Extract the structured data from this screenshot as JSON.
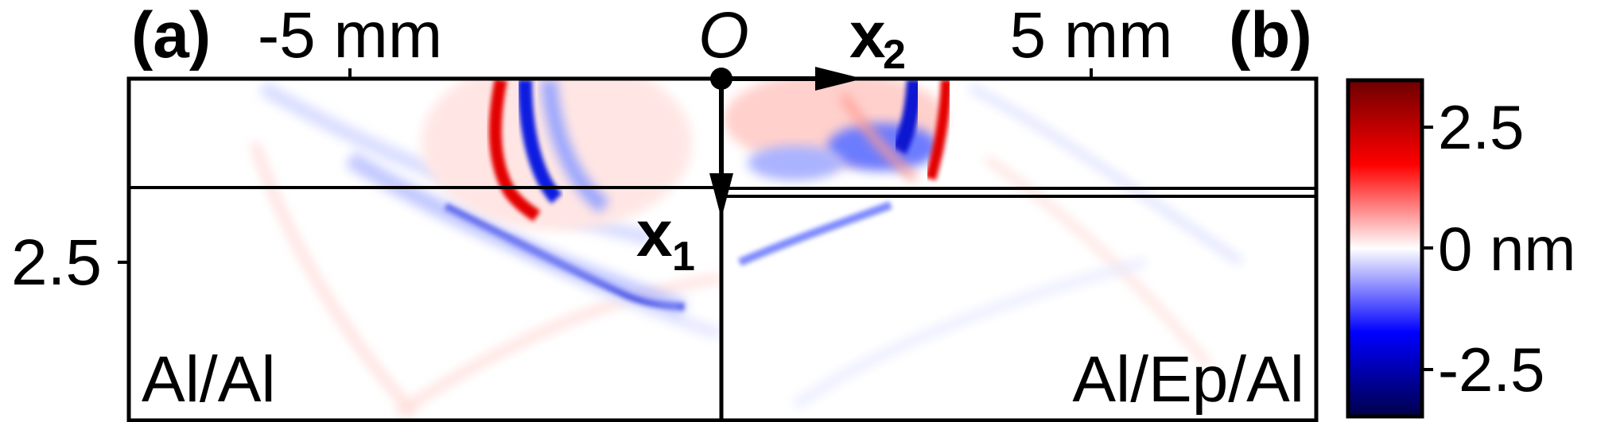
{
  "figure": {
    "panel_a_label": "(a)",
    "panel_b_label": "(b)",
    "origin_label": "O",
    "axis_x2_label": "x",
    "axis_x2_sub": "2",
    "axis_x1_label": "x",
    "axis_x1_sub": "1",
    "tick_top_left": "-5 mm",
    "tick_top_right": "5 mm",
    "tick_left": "2.5",
    "material_left": "Al/Al",
    "material_right": "Al/Ep/Al"
  },
  "colorbar": {
    "tick_max": "2.5",
    "tick_mid": "0 nm",
    "tick_min": "-2.5",
    "colors": {
      "max": "#6e0000",
      "high": "#ff0000",
      "zero": "#ffffff",
      "low": "#0000ff",
      "min": "#00004a"
    }
  }
}
